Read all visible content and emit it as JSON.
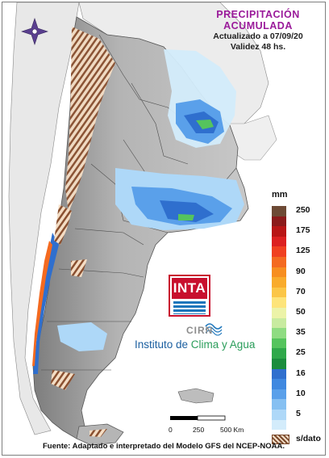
{
  "title": {
    "line1": "PRECIPITACIÓN",
    "line2": "ACUMULADA",
    "updated": "Actualizado a 07/09/20",
    "validity": "Validez 48 hs."
  },
  "legend": {
    "unit": "mm",
    "items": [
      {
        "label": "250",
        "color": "#6d4a35"
      },
      {
        "label": "",
        "color": "#8b1a1a"
      },
      {
        "label": "175",
        "color": "#b81515"
      },
      {
        "label": "",
        "color": "#dc2020"
      },
      {
        "label": "125",
        "color": "#f04020"
      },
      {
        "label": "",
        "color": "#f46a20"
      },
      {
        "label": "90",
        "color": "#f78e20"
      },
      {
        "label": "",
        "color": "#f9ab2c"
      },
      {
        "label": "70",
        "color": "#fbc647"
      },
      {
        "label": "",
        "color": "#fde47a"
      },
      {
        "label": "50",
        "color": "#ecf3a8"
      },
      {
        "label": "",
        "color": "#c8eba0"
      },
      {
        "label": "35",
        "color": "#8fdc82"
      },
      {
        "label": "",
        "color": "#55c45d"
      },
      {
        "label": "25",
        "color": "#2fa84a"
      },
      {
        "label": "",
        "color": "#1b8d3d"
      },
      {
        "label": "16",
        "color": "#2f6fce"
      },
      {
        "label": "",
        "color": "#3f88e0"
      },
      {
        "label": "10",
        "color": "#5aa0ea"
      },
      {
        "label": "",
        "color": "#86c0f2"
      },
      {
        "label": "5",
        "color": "#aed8f8"
      },
      {
        "label": "",
        "color": "#d3ecfb"
      }
    ],
    "nodata_label": "s/dato"
  },
  "logos": {
    "inta": "INTA",
    "cirn": "CIRN",
    "institute_part1": "Instituto de ",
    "institute_part2": "Clima y Agua"
  },
  "scale": {
    "labels": [
      "0",
      "250",
      "500 Km"
    ]
  },
  "source": "Fuente: Adaptado e interpretado del Modelo GFS del NCEP-NOAA.",
  "colors": {
    "ocean": "#ffffff",
    "land_neighbor": "#e6e6e6",
    "relief": "#a9a9a9",
    "title": "#9a1a9a",
    "rain_light": "#aed8f8",
    "rain_mid": "#5aa0ea",
    "rain_heavy": "#2f6fce",
    "rain_green": "#55c45d"
  }
}
